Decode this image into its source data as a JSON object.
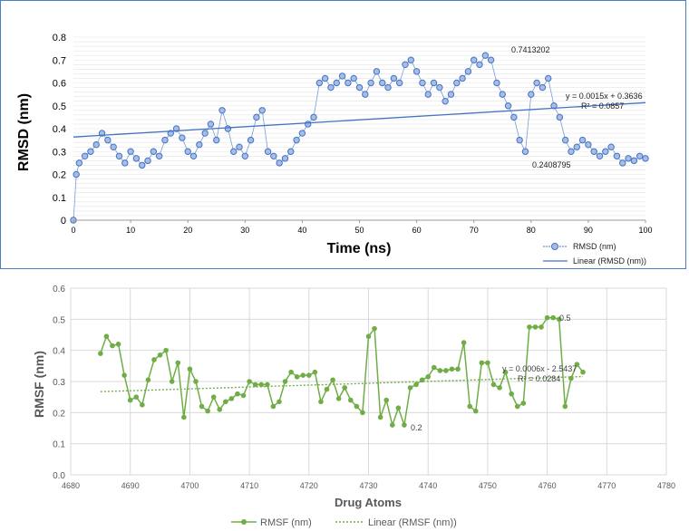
{
  "chart_data": [
    {
      "type": "scatter",
      "xlabel": "Time (ns)",
      "ylabel": "RMSD (nm)",
      "xlim": [
        0,
        100
      ],
      "ylim": [
        0,
        0.8
      ],
      "xticks": [
        "0",
        "10",
        "20",
        "30",
        "40",
        "50",
        "60",
        "70",
        "80",
        "90",
        "100"
      ],
      "yticks": [
        "0",
        "0.1",
        "0.2",
        "0.3",
        "0.4",
        "0.5",
        "0.6",
        "0.7",
        "0.8"
      ],
      "grid": true,
      "legend_position": "bottom-right",
      "legend": [
        "RMSD (nm)",
        "Linear (RMSD (nm))"
      ],
      "series": [
        {
          "name": "RMSD (nm)",
          "x": [
            0,
            0.5,
            1,
            2,
            3,
            4,
            5,
            6,
            7,
            8,
            9,
            10,
            11,
            12,
            13,
            14,
            15,
            16,
            17,
            18,
            19,
            20,
            21,
            22,
            23,
            24,
            25,
            26,
            27,
            28,
            29,
            30,
            31,
            32,
            33,
            34,
            35,
            36,
            37,
            38,
            39,
            40,
            41,
            42,
            43,
            44,
            45,
            46,
            47,
            48,
            49,
            50,
            51,
            52,
            53,
            54,
            55,
            56,
            57,
            58,
            59,
            60,
            61,
            62,
            63,
            64,
            65,
            66,
            67,
            68,
            69,
            70,
            71,
            72,
            73,
            74,
            75,
            76,
            77,
            78,
            79,
            80,
            81,
            82,
            83,
            84,
            85,
            86,
            87,
            88,
            89,
            90,
            91,
            92,
            93,
            94,
            95,
            96,
            97,
            98,
            99,
            100
          ],
          "y": [
            0,
            0.2,
            0.25,
            0.28,
            0.3,
            0.33,
            0.38,
            0.35,
            0.32,
            0.28,
            0.25,
            0.3,
            0.27,
            0.24,
            0.26,
            0.3,
            0.28,
            0.35,
            0.38,
            0.4,
            0.36,
            0.3,
            0.28,
            0.33,
            0.38,
            0.42,
            0.35,
            0.48,
            0.4,
            0.3,
            0.32,
            0.28,
            0.35,
            0.45,
            0.48,
            0.3,
            0.28,
            0.25,
            0.27,
            0.3,
            0.35,
            0.38,
            0.42,
            0.45,
            0.6,
            0.62,
            0.58,
            0.6,
            0.63,
            0.6,
            0.62,
            0.58,
            0.55,
            0.6,
            0.65,
            0.6,
            0.58,
            0.62,
            0.6,
            0.68,
            0.7,
            0.65,
            0.6,
            0.55,
            0.6,
            0.58,
            0.52,
            0.55,
            0.6,
            0.62,
            0.65,
            0.7,
            0.68,
            0.72,
            0.7,
            0.6,
            0.55,
            0.5,
            0.45,
            0.35,
            0.3,
            0.55,
            0.6,
            0.58,
            0.62,
            0.5,
            0.45,
            0.35,
            0.3,
            0.32,
            0.35,
            0.33,
            0.3,
            0.28,
            0.3,
            0.32,
            0.28,
            0.25,
            0.27,
            0.26,
            0.28,
            0.27
          ]
        },
        {
          "name": "Linear (RMSD (nm))",
          "trendline": {
            "slope": 0.0015,
            "intercept": 0.3636
          }
        }
      ],
      "annotations": {
        "max_label": "0.7413202",
        "min_label": "0.2408795",
        "equation": "y = 0.0015x + 0.3636",
        "r2": "R² = 0.0857"
      }
    },
    {
      "type": "line",
      "xlabel": "Drug Atoms",
      "ylabel": "RMSF (nm)",
      "xlim": [
        4680,
        4780
      ],
      "ylim": [
        0,
        0.6
      ],
      "xticks": [
        "4680",
        "4690",
        "4700",
        "4710",
        "4720",
        "4730",
        "4740",
        "4750",
        "4760",
        "4770",
        "4780"
      ],
      "yticks": [
        "0.0",
        "0.1",
        "0.2",
        "0.3",
        "0.4",
        "0.5",
        "0.6"
      ],
      "grid": true,
      "legend_position": "bottom",
      "legend": [
        "RMSF (nm)",
        "Linear (RMSF (nm))"
      ],
      "series": [
        {
          "name": "RMSF (nm)",
          "x": [
            4685,
            4686,
            4687,
            4688,
            4689,
            4690,
            4691,
            4692,
            4693,
            4694,
            4695,
            4696,
            4697,
            4698,
            4699,
            4700,
            4701,
            4702,
            4703,
            4704,
            4705,
            4706,
            4707,
            4708,
            4709,
            4710,
            4711,
            4712,
            4713,
            4714,
            4715,
            4716,
            4717,
            4718,
            4719,
            4720,
            4721,
            4722,
            4723,
            4724,
            4725,
            4726,
            4727,
            4728,
            4729,
            4730,
            4731,
            4732,
            4733,
            4734,
            4735,
            4736,
            4737,
            4738,
            4739,
            4740,
            4741,
            4742,
            4743,
            4744,
            4745,
            4746,
            4747,
            4748,
            4749,
            4750,
            4751,
            4752,
            4753,
            4754,
            4755,
            4756,
            4757,
            4758,
            4759,
            4760,
            4761,
            4762,
            4763,
            4764,
            4765,
            4766
          ],
          "y": [
            0.39,
            0.445,
            0.415,
            0.42,
            0.32,
            0.24,
            0.25,
            0.225,
            0.305,
            0.37,
            0.385,
            0.4,
            0.3,
            0.36,
            0.185,
            0.34,
            0.3,
            0.22,
            0.205,
            0.25,
            0.21,
            0.235,
            0.245,
            0.26,
            0.255,
            0.3,
            0.29,
            0.29,
            0.29,
            0.22,
            0.235,
            0.3,
            0.33,
            0.315,
            0.32,
            0.32,
            0.33,
            0.235,
            0.275,
            0.305,
            0.245,
            0.28,
            0.24,
            0.22,
            0.2,
            0.445,
            0.47,
            0.185,
            0.24,
            0.16,
            0.215,
            0.16,
            0.28,
            0.29,
            0.305,
            0.315,
            0.345,
            0.335,
            0.335,
            0.34,
            0.34,
            0.425,
            0.22,
            0.205,
            0.36,
            0.36,
            0.29,
            0.28,
            0.33,
            0.26,
            0.22,
            0.23,
            0.475,
            0.475,
            0.475,
            0.505,
            0.505,
            0.5,
            0.22,
            0.31,
            0.355,
            0.33
          ]
        },
        {
          "name": "Linear (RMSF (nm))",
          "trendline": {
            "slope": 0.0006,
            "intercept": -2.5437
          }
        }
      ],
      "annotations": {
        "max_label": "0.5",
        "min_label": "0.2",
        "equation": "y = 0.0006x - 2.5437",
        "r2": "R² = 0.0284"
      }
    }
  ]
}
